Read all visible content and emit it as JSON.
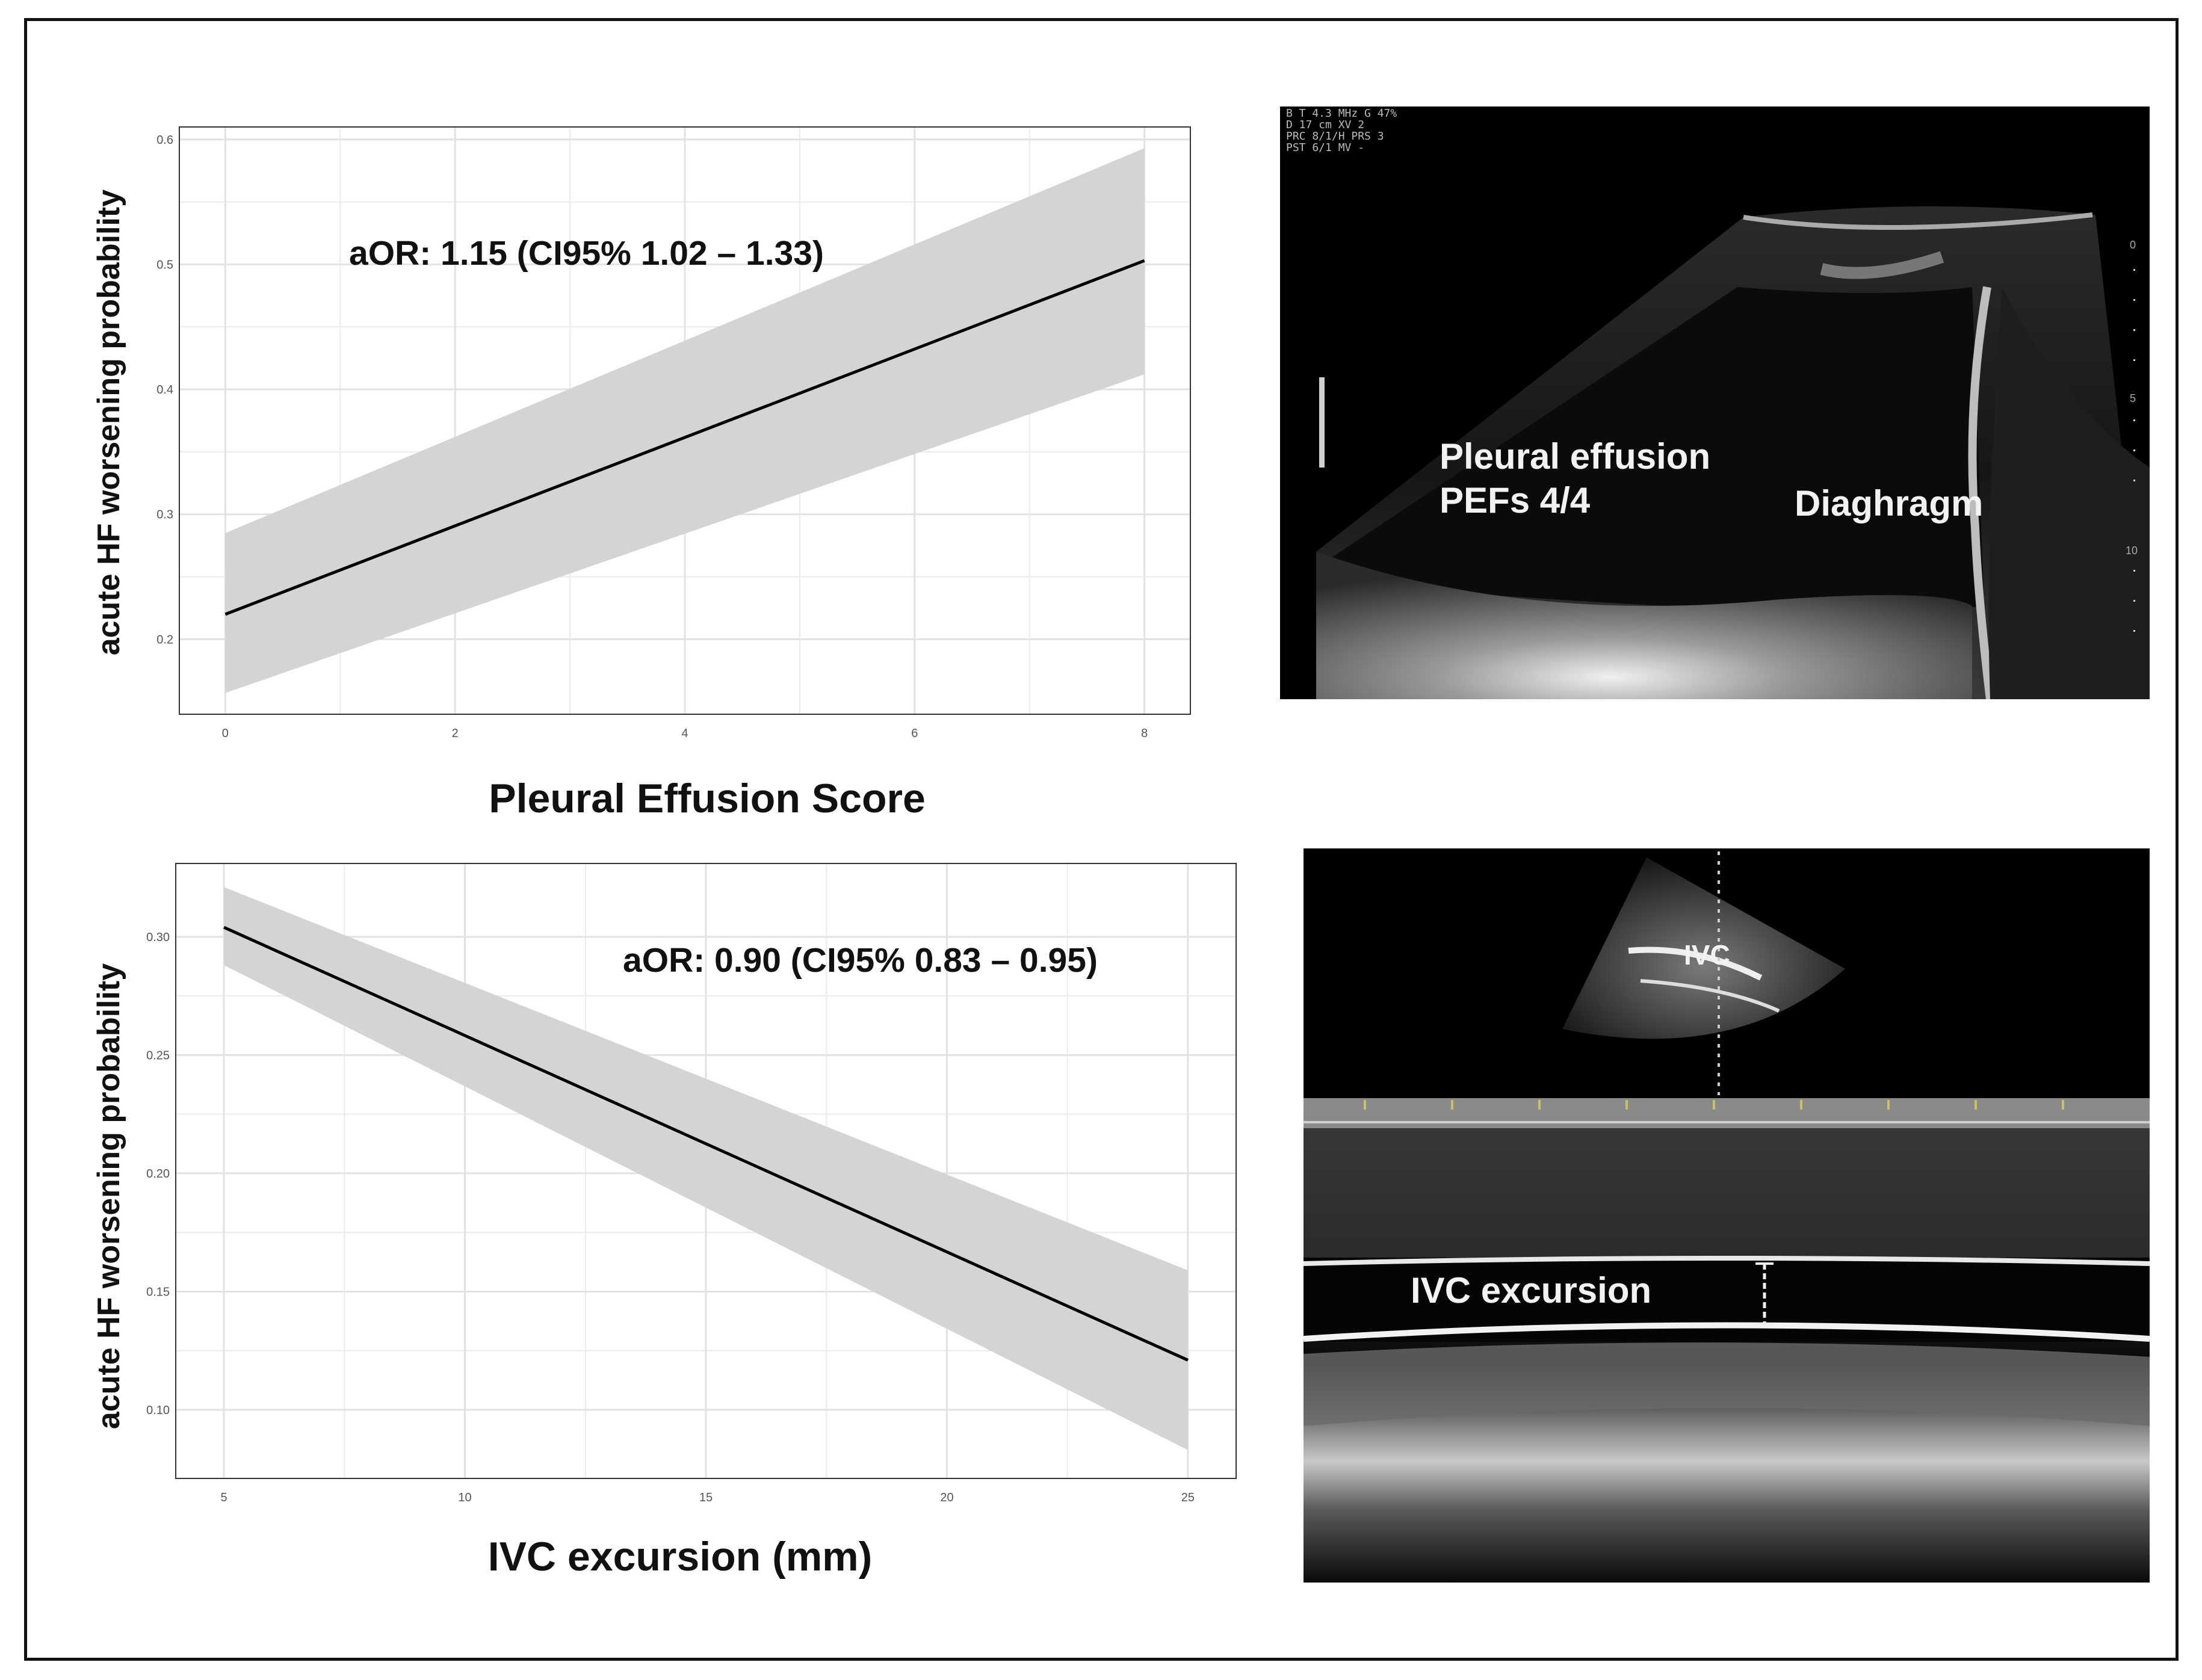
{
  "chart_data": [
    {
      "type": "line",
      "x": [
        0,
        8
      ],
      "series": [
        {
          "values": [
            0.22,
            0.503
          ],
          "lower": [
            0.157,
            0.412
          ],
          "upper": [
            0.285,
            0.593
          ]
        }
      ],
      "xlabel": "Pleural Effusion Score",
      "ylabel": "acute HF worsening probability",
      "annotation": "aOR: 1.15 (CI95% 1.02 – 1.33)",
      "xlim": [
        -0.4,
        8.4
      ],
      "ylim": [
        0.14,
        0.61
      ],
      "xticks": [
        0,
        2,
        4,
        6,
        8
      ],
      "xtick_labels": [
        "0",
        "2",
        "4",
        "6",
        "8"
      ],
      "yticks": [
        0.2,
        0.3,
        0.4,
        0.5,
        0.6
      ],
      "ytick_labels": [
        "0.2",
        "0.3",
        "0.4",
        "0.5",
        "0.6"
      ],
      "grid": true,
      "colors": {
        "line": "#000000",
        "band": "#d4d4d4",
        "grid": "#ebebeb"
      }
    },
    {
      "type": "line",
      "x": [
        5,
        25
      ],
      "series": [
        {
          "values": [
            0.304,
            0.121
          ],
          "lower": [
            0.288,
            0.083
          ],
          "upper": [
            0.321,
            0.159
          ]
        }
      ],
      "xlabel": "IVC excursion (mm)",
      "ylabel": "acute HF worsening probability",
      "annotation": "aOR: 0.90 (CI95% 0.83 – 0.95)",
      "xlim": [
        4.0,
        26.0
      ],
      "ylim": [
        0.071,
        0.331
      ],
      "xticks": [
        5,
        10,
        15,
        20,
        25
      ],
      "xtick_labels": [
        "5",
        "10",
        "15",
        "20",
        "25"
      ],
      "yticks": [
        0.1,
        0.15,
        0.2,
        0.25,
        0.3
      ],
      "ytick_labels": [
        "0.10",
        "0.15",
        "0.20",
        "0.25",
        "0.30"
      ],
      "grid": true,
      "colors": {
        "line": "#000000",
        "band": "#d4d4d4",
        "grid": "#ebebeb"
      }
    }
  ],
  "images": {
    "pleural": {
      "labels": {
        "effusion": "Pleural effusion",
        "score": "PEFs 4/4",
        "diaphragm": "Diaghragm"
      },
      "settings": [
        "B T    4.3 MHz   G 47%",
        "  D   17 cm      XV  2",
        "  PRC 8/1/H      PRS  3",
        "  PST 6/1        MV  -"
      ],
      "depth_marks": [
        "0",
        "5",
        "10"
      ]
    },
    "ivc": {
      "labels": {
        "vessel": "IVC",
        "excursion": "IVC excursion"
      }
    }
  }
}
